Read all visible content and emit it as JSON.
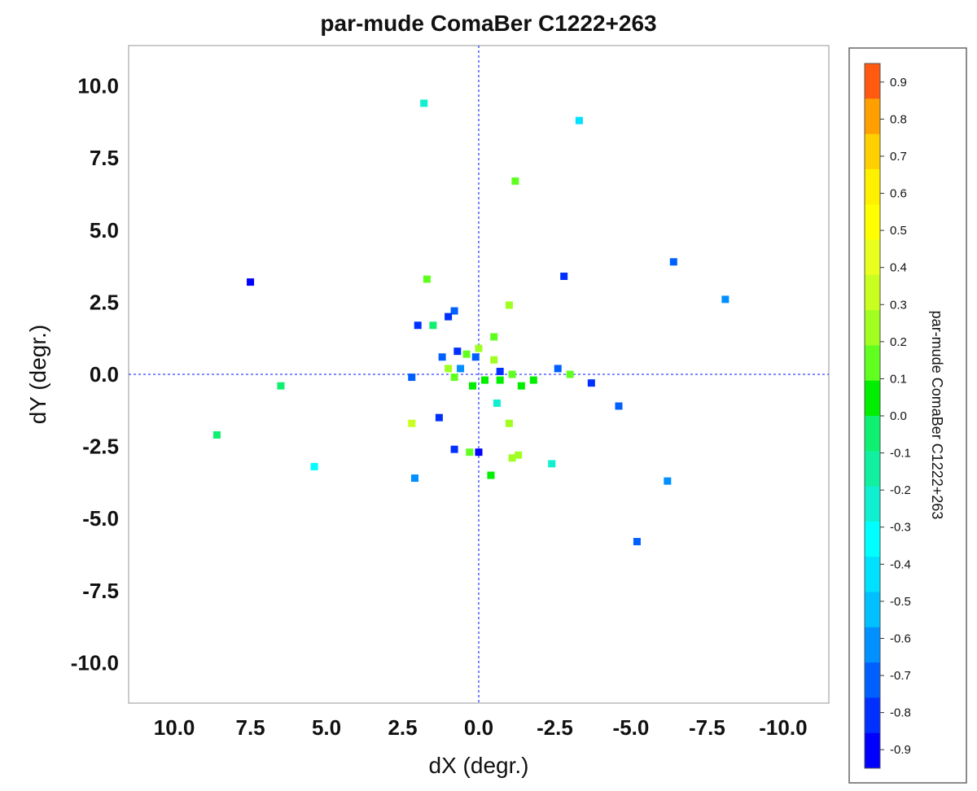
{
  "chart_data": {
    "type": "scatter",
    "title": "par-mude ComaBer  C1222+263",
    "xlabel": "dX (degr.)",
    "ylabel": "dY (degr.)",
    "xlim": [
      11.5,
      -11.5
    ],
    "ylim": [
      -11.4,
      11.4
    ],
    "x_ticks": [
      "10.0",
      "7.5",
      "5.0",
      "2.5",
      "0.0",
      "-2.5",
      "-5.0",
      "-7.5",
      "-10.0"
    ],
    "y_ticks": [
      "10.0",
      "7.5",
      "5.0",
      "2.5",
      "0.0",
      "-2.5",
      "-5.0",
      "-7.5",
      "-10.0"
    ],
    "grid": false,
    "reference_lines": {
      "x": 0,
      "y": 0,
      "style": "dotted",
      "color": "#3344ff"
    },
    "colorbar": {
      "label": "par-mude ComaBer  C1222+263",
      "range": [
        -0.95,
        0.95
      ],
      "tick_labels": [
        "0.9",
        "0.8",
        "0.7",
        "0.6",
        "0.5",
        "0.4",
        "0.3",
        "0.2",
        "0.1",
        "0.0",
        "-0.1",
        "-0.2",
        "-0.3",
        "-0.4",
        "-0.5",
        "-0.6",
        "-0.7",
        "-0.8",
        "-0.9"
      ],
      "band_colors": [
        "#ff5a10",
        "#ffa000",
        "#ffd000",
        "#fff000",
        "#ffff00",
        "#e8ff20",
        "#c8ff20",
        "#a0ff20",
        "#60ff20",
        "#00ee00",
        "#10f070",
        "#10f0a0",
        "#10f0d0",
        "#00ffff",
        "#00e0ff",
        "#00c0ff",
        "#0090ff",
        "#0060ff",
        "#0030ff",
        "#0000ff"
      ]
    },
    "points": [
      {
        "x": 1.8,
        "y": 9.4,
        "v": -0.2
      },
      {
        "x": -3.3,
        "y": 8.8,
        "v": -0.4
      },
      {
        "x": -1.2,
        "y": 6.7,
        "v": 0.1
      },
      {
        "x": -6.4,
        "y": 3.9,
        "v": -0.7
      },
      {
        "x": 7.5,
        "y": 3.2,
        "v": -0.9
      },
      {
        "x": 1.7,
        "y": 3.3,
        "v": 0.1
      },
      {
        "x": -2.8,
        "y": 3.4,
        "v": -0.85
      },
      {
        "x": -8.1,
        "y": 2.6,
        "v": -0.65
      },
      {
        "x": -1.0,
        "y": 2.4,
        "v": 0.25
      },
      {
        "x": 0.8,
        "y": 2.2,
        "v": -0.7
      },
      {
        "x": 1.0,
        "y": 2.0,
        "v": -0.8
      },
      {
        "x": 2.0,
        "y": 1.7,
        "v": -0.85
      },
      {
        "x": 1.5,
        "y": 1.7,
        "v": 0.0
      },
      {
        "x": -0.5,
        "y": 1.3,
        "v": 0.15
      },
      {
        "x": 0.0,
        "y": 0.9,
        "v": 0.2
      },
      {
        "x": 0.7,
        "y": 0.8,
        "v": -0.85
      },
      {
        "x": 0.4,
        "y": 0.7,
        "v": 0.1
      },
      {
        "x": 1.2,
        "y": 0.6,
        "v": -0.75
      },
      {
        "x": -0.5,
        "y": 0.5,
        "v": 0.2
      },
      {
        "x": 0.1,
        "y": 0.6,
        "v": -0.7
      },
      {
        "x": 1.0,
        "y": 0.2,
        "v": 0.2
      },
      {
        "x": 0.6,
        "y": 0.2,
        "v": -0.6
      },
      {
        "x": -0.7,
        "y": 0.1,
        "v": -0.85
      },
      {
        "x": -2.6,
        "y": 0.2,
        "v": -0.75
      },
      {
        "x": 2.2,
        "y": -0.1,
        "v": -0.7
      },
      {
        "x": -1.1,
        "y": 0.0,
        "v": 0.1
      },
      {
        "x": 0.8,
        "y": -0.1,
        "v": 0.1
      },
      {
        "x": -0.2,
        "y": -0.2,
        "v": 0.05
      },
      {
        "x": -0.7,
        "y": -0.2,
        "v": 0.05
      },
      {
        "x": -1.8,
        "y": -0.2,
        "v": 0.05
      },
      {
        "x": -3.0,
        "y": 0.0,
        "v": 0.1
      },
      {
        "x": 0.2,
        "y": -0.4,
        "v": 0.05
      },
      {
        "x": -1.4,
        "y": -0.4,
        "v": 0.05
      },
      {
        "x": -3.7,
        "y": -0.3,
        "v": -0.8
      },
      {
        "x": 6.5,
        "y": -0.4,
        "v": -0.05
      },
      {
        "x": -0.6,
        "y": -1.0,
        "v": -0.25
      },
      {
        "x": -4.6,
        "y": -1.1,
        "v": -0.7
      },
      {
        "x": 8.6,
        "y": -2.1,
        "v": -0.05
      },
      {
        "x": 1.3,
        "y": -1.5,
        "v": -0.8
      },
      {
        "x": 2.2,
        "y": -1.7,
        "v": 0.3
      },
      {
        "x": -1.0,
        "y": -1.7,
        "v": 0.2
      },
      {
        "x": 0.8,
        "y": -2.6,
        "v": -0.85
      },
      {
        "x": 0.0,
        "y": -2.7,
        "v": -0.9
      },
      {
        "x": 0.3,
        "y": -2.7,
        "v": 0.1
      },
      {
        "x": -1.1,
        "y": -2.9,
        "v": 0.2
      },
      {
        "x": -1.3,
        "y": -2.8,
        "v": 0.2
      },
      {
        "x": -2.4,
        "y": -3.1,
        "v": -0.2
      },
      {
        "x": 5.4,
        "y": -3.2,
        "v": -0.3
      },
      {
        "x": -0.4,
        "y": -3.5,
        "v": 0.05
      },
      {
        "x": 2.1,
        "y": -3.6,
        "v": -0.6
      },
      {
        "x": -6.2,
        "y": -3.7,
        "v": -0.65
      },
      {
        "x": -5.2,
        "y": -5.8,
        "v": -0.75
      }
    ]
  }
}
